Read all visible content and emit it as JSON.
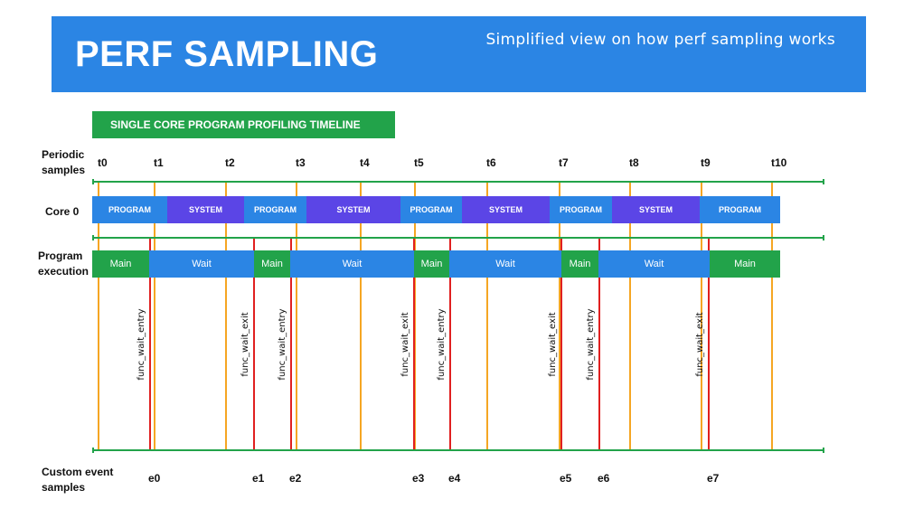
{
  "header": {
    "title": "PERF SAMPLING",
    "subtitle": "Simplified view on how perf sampling works"
  },
  "badge": {
    "label": "SINGLE CORE PROGRAM PROFILING TIMELINE"
  },
  "row_labels": {
    "periodic": [
      "Periodic",
      "samples"
    ],
    "core": "Core 0",
    "program": [
      "Program",
      "execution"
    ],
    "custom": [
      "Custom event",
      "samples"
    ]
  },
  "colors": {
    "program": "#2b85e4",
    "system": "#5b45e6",
    "main": "#22a34a",
    "wait": "#2b85e4",
    "periodic_line": "#f5a623",
    "event_line": "#e02020",
    "axis": "#22a34a"
  },
  "periodic_samples": [
    "t0",
    "t1",
    "t2",
    "t3",
    "t4",
    "t5",
    "t6",
    "t7",
    "t8",
    "t9",
    "t10"
  ],
  "core_segments": [
    {
      "label": "PROGRAM",
      "kind": "program"
    },
    {
      "label": "SYSTEM",
      "kind": "system"
    },
    {
      "label": "PROGRAM",
      "kind": "program"
    },
    {
      "label": "SYSTEM",
      "kind": "system"
    },
    {
      "label": "PROGRAM",
      "kind": "program"
    },
    {
      "label": "SYSTEM",
      "kind": "system"
    },
    {
      "label": "PROGRAM",
      "kind": "program"
    },
    {
      "label": "SYSTEM",
      "kind": "system"
    },
    {
      "label": "PROGRAM",
      "kind": "program"
    }
  ],
  "exec_segments": [
    {
      "label": "Main",
      "kind": "main"
    },
    {
      "label": "Wait",
      "kind": "wait"
    },
    {
      "label": "Main",
      "kind": "main"
    },
    {
      "label": "Wait",
      "kind": "wait"
    },
    {
      "label": "Main",
      "kind": "main"
    },
    {
      "label": "Wait",
      "kind": "wait"
    },
    {
      "label": "Main",
      "kind": "main"
    },
    {
      "label": "Wait",
      "kind": "wait"
    },
    {
      "label": "Main",
      "kind": "main"
    }
  ],
  "events": [
    {
      "label": "e0",
      "function": "func_wait_entry"
    },
    {
      "label": "e1",
      "function": "func_wait_exit"
    },
    {
      "label": "e2",
      "function": "func_wait_entry"
    },
    {
      "label": "e3",
      "function": "func_wait_exit"
    },
    {
      "label": "e4",
      "function": "func_wait_entry"
    },
    {
      "label": "e5",
      "function": "func_wait_exit"
    },
    {
      "label": "e6",
      "function": "func_wait_entry"
    },
    {
      "label": "e7",
      "function": "func_wait_exit"
    }
  ]
}
